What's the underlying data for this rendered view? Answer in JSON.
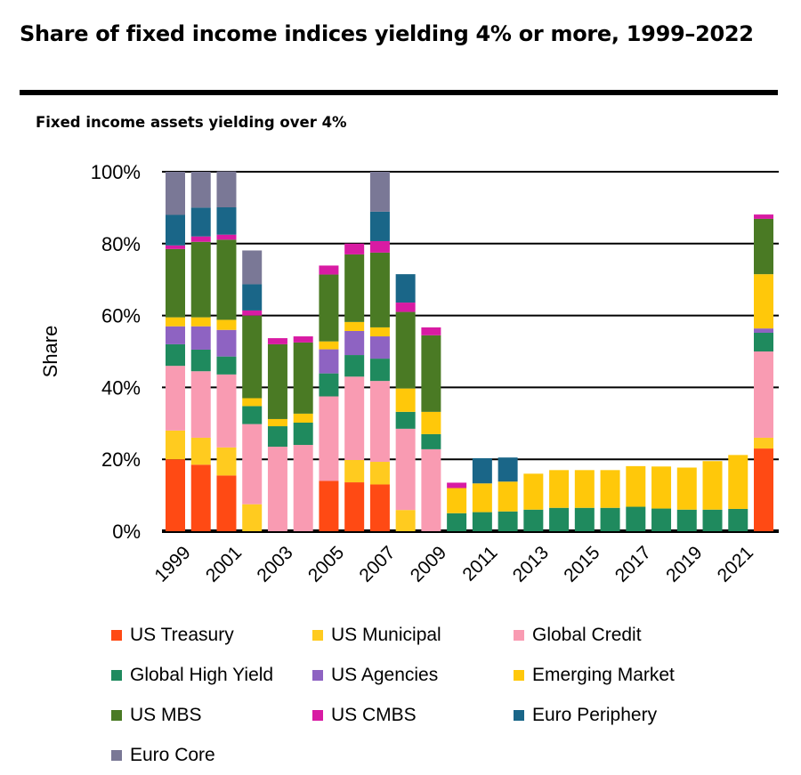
{
  "title": "Share of fixed income indices yielding 4% or more, 1999–2022",
  "subtitle": "Fixed income assets yielding over 4%",
  "chart_data": {
    "type": "bar",
    "stacked": true,
    "title": "Share of fixed income indices yielding 4% or more, 1999–2022",
    "subtitle": "Fixed income assets yielding over 4%",
    "xlabel": "",
    "ylabel": "Share",
    "ylim": [
      0,
      100
    ],
    "yticks": [
      "0%",
      "20%",
      "40%",
      "60%",
      "80%",
      "100%"
    ],
    "grid": true,
    "legend_position": "bottom",
    "categories": [
      "1999",
      "2000",
      "2001",
      "2002",
      "2003",
      "2004",
      "2005",
      "2006",
      "2007",
      "2008",
      "2009",
      "2010",
      "2011",
      "2012",
      "2013",
      "2014",
      "2015",
      "2016",
      "2017",
      "2018",
      "2019",
      "2020",
      "2021",
      "2022"
    ],
    "xtick_labels": [
      "1999",
      "2001",
      "2003",
      "2005",
      "2007",
      "2009",
      "2011",
      "2013",
      "2015",
      "2017",
      "2019",
      "2021"
    ],
    "series": [
      {
        "name": "US Treasury",
        "color": "#FF4A14",
        "values": [
          20,
          18.5,
          15.5,
          0,
          0,
          0,
          14,
          13.6,
          13,
          0,
          0,
          0,
          0,
          0,
          0,
          0,
          0,
          0,
          0,
          0,
          0,
          0,
          0,
          23
        ]
      },
      {
        "name": "US Municipal",
        "color": "#FFCB1F",
        "values": [
          8,
          7.5,
          7.8,
          7.5,
          0,
          0,
          0,
          6.2,
          6.3,
          5.9,
          0,
          0,
          0,
          0,
          0,
          0,
          0,
          0,
          0,
          0,
          0,
          0,
          0,
          3
        ]
      },
      {
        "name": "Global Credit",
        "color": "#F99BB2",
        "values": [
          18,
          18.5,
          20.3,
          22.3,
          23.5,
          24,
          23.5,
          23.2,
          22.5,
          22.6,
          22.8,
          0,
          0,
          0,
          0,
          0,
          0,
          0,
          0,
          0,
          0,
          0,
          0,
          24
        ]
      },
      {
        "name": "Global High Yield",
        "color": "#1F8A5E",
        "values": [
          6,
          6,
          5,
          5,
          5.7,
          6.2,
          6.4,
          6,
          6.2,
          4.7,
          4.2,
          5,
          5.3,
          5.5,
          6,
          6.5,
          6.5,
          6.5,
          6.8,
          6.3,
          6,
          6,
          6.2,
          5.2
        ]
      },
      {
        "name": "US Agencies",
        "color": "#8E63C2",
        "values": [
          5,
          6.5,
          7.4,
          0,
          0,
          0,
          6.7,
          6.7,
          6.2,
          0,
          0,
          0,
          0,
          0,
          0,
          0,
          0,
          0,
          0,
          0,
          0,
          0,
          0,
          1.2
        ]
      },
      {
        "name": "Emerging Market",
        "color": "#FFC80A",
        "values": [
          2.5,
          2.5,
          2.8,
          2.2,
          2,
          2.5,
          2.2,
          2.5,
          2.5,
          6.5,
          6.2,
          7,
          8,
          8.3,
          10,
          10.5,
          10.5,
          10.5,
          11.3,
          11.7,
          11.7,
          13.5,
          15,
          15.1
        ]
      },
      {
        "name": "US MBS",
        "color": "#4A7A24",
        "values": [
          19,
          21,
          22.3,
          23,
          20.8,
          19.8,
          18.6,
          18.8,
          20.8,
          21.3,
          21.3,
          0,
          0,
          0,
          0,
          0,
          0,
          0,
          0,
          0,
          0,
          0,
          0,
          15.4
        ]
      },
      {
        "name": "US CMBS",
        "color": "#D81BA3",
        "values": [
          1,
          1.5,
          1.4,
          1.4,
          1.7,
          1.7,
          2.5,
          3,
          3.2,
          2.6,
          2.2,
          1.5,
          0,
          0,
          0,
          0,
          0,
          0,
          0,
          0,
          0,
          0,
          0,
          1.2
        ]
      },
      {
        "name": "Euro Periphery",
        "color": "#1A6688",
        "values": [
          8.5,
          8,
          7.6,
          7.3,
          0,
          0,
          0,
          0,
          8.2,
          7.9,
          0,
          0,
          7,
          6.7,
          0,
          0,
          0,
          0,
          0,
          0,
          0,
          0,
          0,
          0
        ]
      },
      {
        "name": "Euro Core",
        "color": "#7A7896",
        "values": [
          12,
          10,
          10,
          9.4,
          0,
          0,
          0,
          0,
          11.1,
          0,
          0,
          0,
          0,
          0,
          0,
          0,
          0,
          0,
          0,
          0,
          0,
          0,
          0,
          0
        ]
      }
    ]
  }
}
